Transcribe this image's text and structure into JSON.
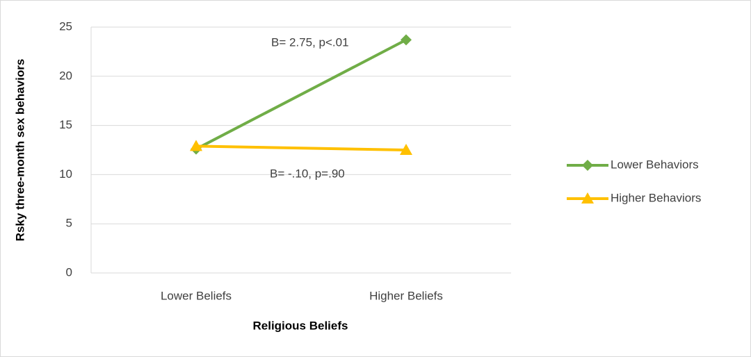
{
  "chart_data": {
    "type": "line",
    "categories": [
      "Lower Beliefs",
      "Higher Beliefs"
    ],
    "series": [
      {
        "name": "Lower Behaviors",
        "color": "#70ad47",
        "marker": "diamond",
        "values": [
          12.6,
          23.7
        ]
      },
      {
        "name": "Higher Behaviors",
        "color": "#ffc000",
        "marker": "triangle",
        "values": [
          12.9,
          12.5
        ]
      }
    ],
    "xlabel": "Religious Beliefs",
    "ylabel": "Rsky three-month sex behaviors",
    "annotations": [
      "B= 2.75, p<.01",
      "B= -.10, p=.90"
    ],
    "ylim": [
      0,
      25
    ],
    "yticks": [
      0,
      5,
      10,
      15,
      20,
      25
    ],
    "grid": true,
    "legend": "right"
  }
}
